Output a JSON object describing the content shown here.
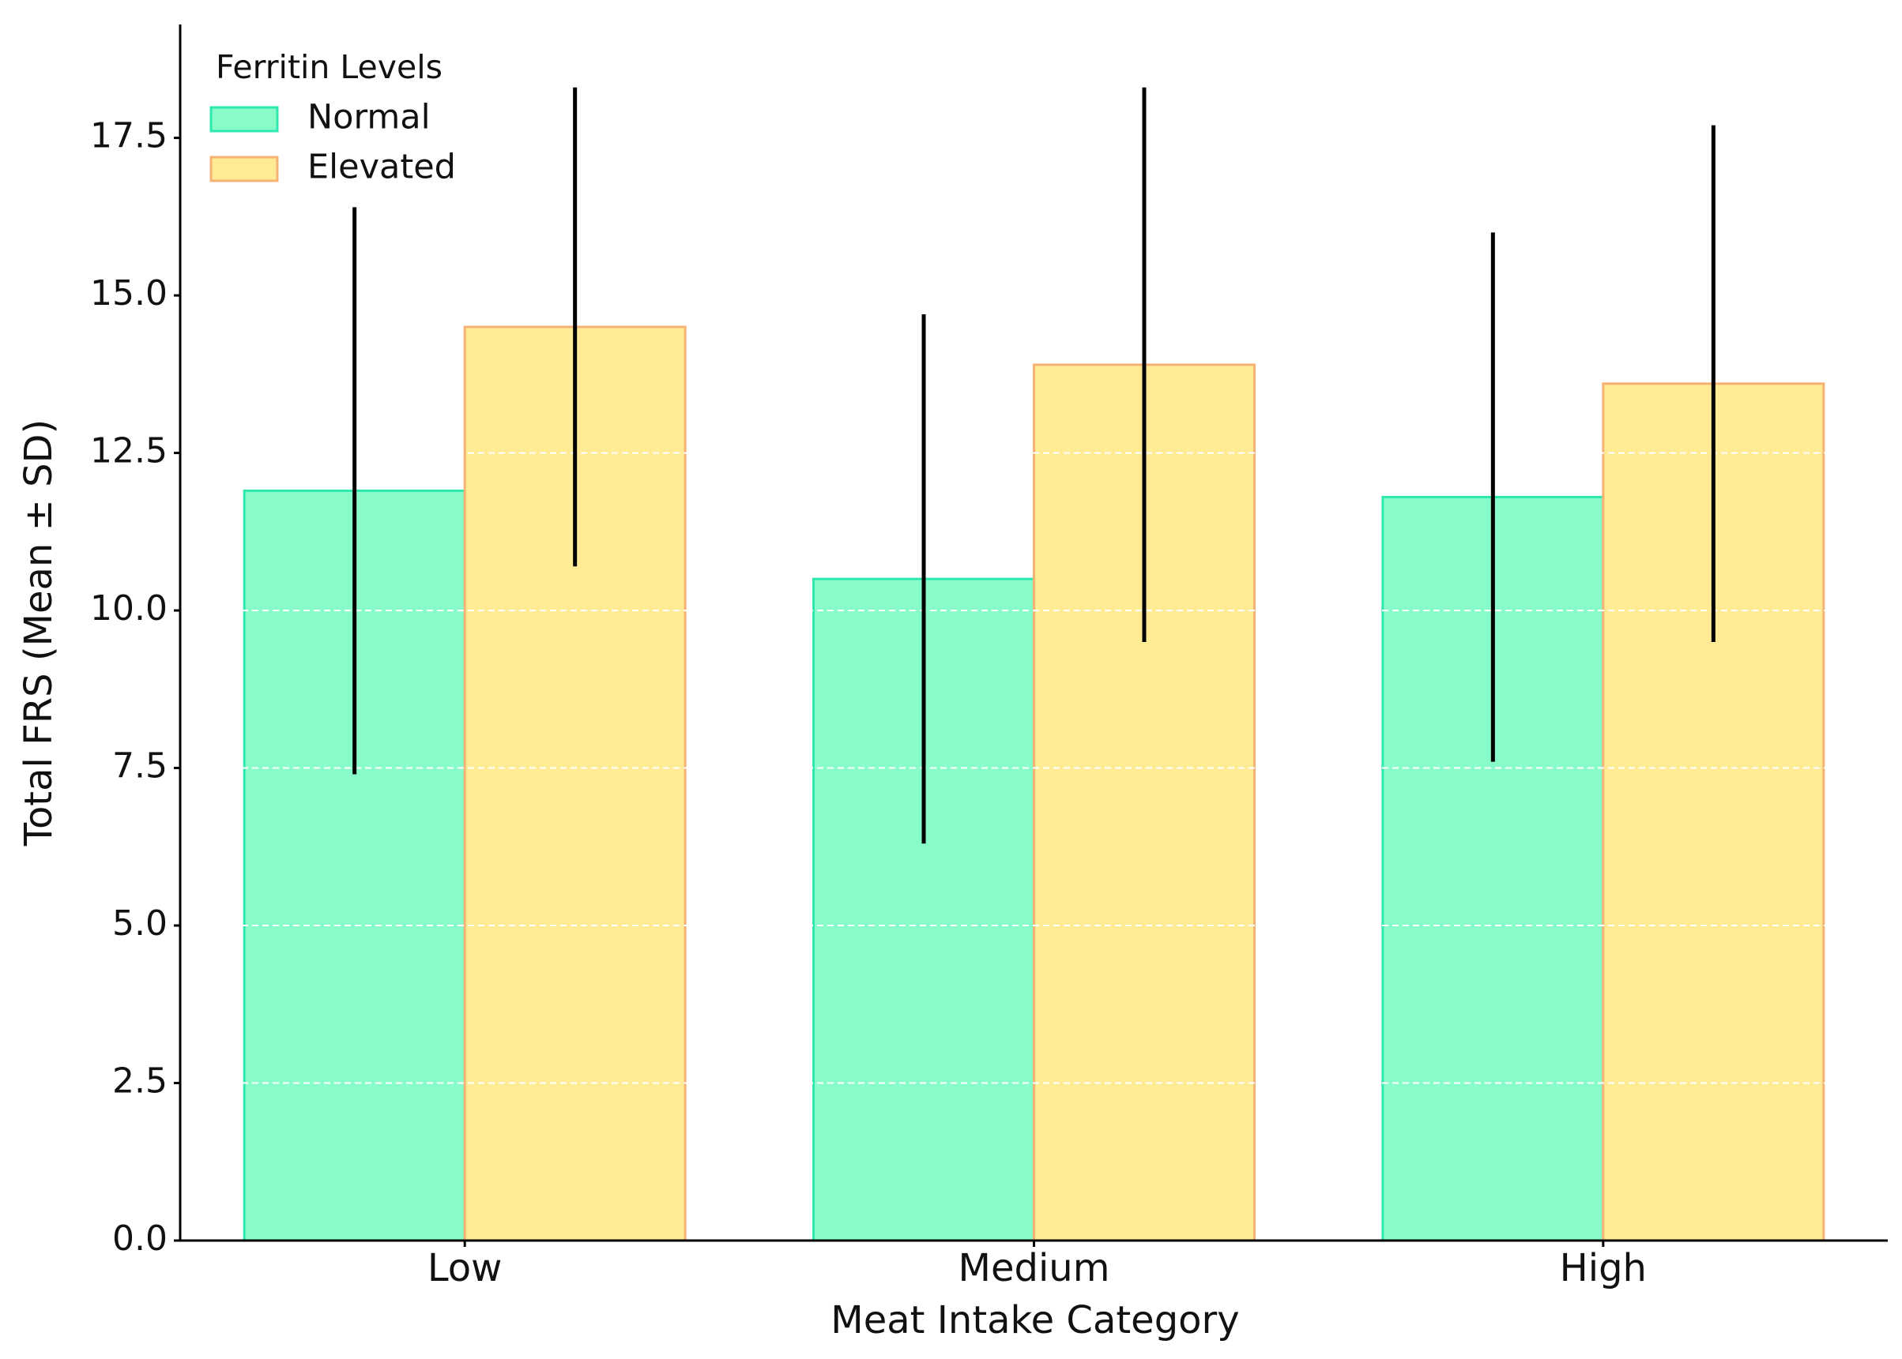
{
  "chart_data": {
    "type": "bar",
    "xlabel": "Meat Intake Category",
    "ylabel": "Total FRS (Mean ± SD)",
    "categories": [
      "Low",
      "Medium",
      "High"
    ],
    "series": [
      {
        "name": "Normal",
        "color": "#88fcc8",
        "edgecolor": "#2ee8b0",
        "values": [
          11.9,
          10.5,
          11.8
        ],
        "errors": [
          4.5,
          4.2,
          4.2
        ]
      },
      {
        "name": "Elevated",
        "color": "#ffeb94",
        "edgecolor": "#f5b274",
        "values": [
          14.5,
          13.9,
          13.6
        ],
        "errors": [
          3.8,
          4.4,
          4.1
        ]
      }
    ],
    "legend_title": "Ferritin Levels",
    "legend_loc": "upper left",
    "ylim": [
      0,
      19.3
    ],
    "yticks": [
      {
        "value": 0,
        "label": "0.0"
      },
      2.5,
      {
        "value": 5,
        "label": "5.0"
      },
      7.5,
      {
        "value": 10,
        "label": "10.0"
      },
      12.5,
      {
        "value": 15,
        "label": "15.0"
      },
      17.5
    ],
    "grid": true
  }
}
